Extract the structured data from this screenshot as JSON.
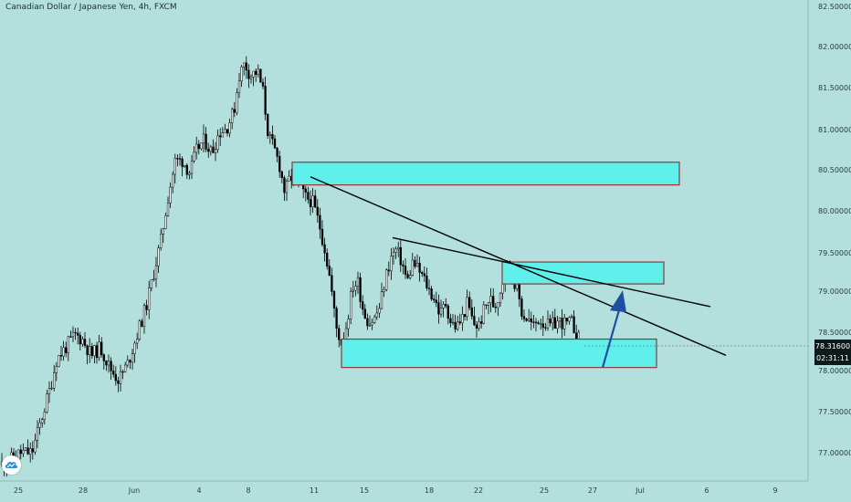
{
  "header": {
    "title": "Canadian Dollar / Japanese Yen, 4h, FXCM"
  },
  "colors": {
    "background": "#b3e0dd",
    "candle": "#000000",
    "zone_fill": "#5ff0ec",
    "zone_border": "#8b3a3a",
    "arrow": "#1f4fa0",
    "price_tag_bg": "#0d1b1b",
    "price_tag_text": "#ffffff",
    "axis_text": "#2a3d3d"
  },
  "chart_data": {
    "type": "candlestick",
    "symbol": "Canadian Dollar / Japanese Yen, 4h, FXCM",
    "x_axis": {
      "tick_labels": [
        "25",
        "28",
        "Jun",
        "4",
        "8",
        "11",
        "15",
        "18",
        "22",
        "25",
        "27",
        "Jul",
        "6",
        "9"
      ]
    },
    "y_axis": {
      "tick_labels": [
        "82.50000",
        "82.00000",
        "81.50000",
        "81.00000",
        "80.50000",
        "80.00000",
        "79.50000",
        "79.00000",
        "78.50000",
        "78.00000",
        "77.50000",
        "77.00000"
      ],
      "ylim": [
        76.6,
        82.6
      ]
    },
    "last_price": {
      "price": 78.316,
      "label": "78.31600",
      "countdown": "02:31:11"
    },
    "price_path": [
      [
        0,
        76.85
      ],
      [
        10,
        76.9
      ],
      [
        22,
        77.0
      ],
      [
        35,
        77.0
      ],
      [
        45,
        77.4
      ],
      [
        55,
        77.8
      ],
      [
        62,
        78.15
      ],
      [
        72,
        78.3
      ],
      [
        82,
        78.45
      ],
      [
        90,
        78.4
      ],
      [
        100,
        78.2
      ],
      [
        110,
        78.3
      ],
      [
        120,
        78.05
      ],
      [
        130,
        77.9
      ],
      [
        140,
        78.1
      ],
      [
        150,
        78.45
      ],
      [
        160,
        78.8
      ],
      [
        168,
        79.2
      ],
      [
        176,
        79.6
      ],
      [
        184,
        80.15
      ],
      [
        192,
        80.6
      ],
      [
        200,
        80.6
      ],
      [
        208,
        80.45
      ],
      [
        216,
        80.75
      ],
      [
        224,
        80.85
      ],
      [
        232,
        80.7
      ],
      [
        240,
        80.95
      ],
      [
        248,
        81.0
      ],
      [
        256,
        81.2
      ],
      [
        262,
        81.65
      ],
      [
        268,
        81.8
      ],
      [
        274,
        81.65
      ],
      [
        282,
        81.7
      ],
      [
        288,
        81.45
      ],
      [
        294,
        80.9
      ],
      [
        300,
        80.75
      ],
      [
        306,
        80.55
      ],
      [
        312,
        80.2
      ],
      [
        318,
        80.4
      ],
      [
        326,
        80.35
      ],
      [
        334,
        80.15
      ],
      [
        342,
        80.1
      ],
      [
        350,
        79.8
      ],
      [
        356,
        79.5
      ],
      [
        362,
        79.1
      ],
      [
        368,
        78.55
      ],
      [
        374,
        78.35
      ],
      [
        380,
        78.6
      ],
      [
        386,
        79.05
      ],
      [
        392,
        79.1
      ],
      [
        398,
        78.75
      ],
      [
        404,
        78.6
      ],
      [
        410,
        78.65
      ],
      [
        416,
        78.8
      ],
      [
        422,
        79.15
      ],
      [
        428,
        79.4
      ],
      [
        434,
        79.5
      ],
      [
        440,
        79.35
      ],
      [
        446,
        79.1
      ],
      [
        452,
        79.35
      ],
      [
        458,
        79.25
      ],
      [
        464,
        79.15
      ],
      [
        470,
        79.0
      ],
      [
        476,
        78.9
      ],
      [
        482,
        78.7
      ],
      [
        488,
        78.85
      ],
      [
        494,
        78.6
      ],
      [
        500,
        78.55
      ],
      [
        506,
        78.65
      ],
      [
        512,
        78.85
      ],
      [
        518,
        78.6
      ],
      [
        524,
        78.55
      ],
      [
        530,
        78.75
      ],
      [
        536,
        78.9
      ],
      [
        542,
        78.8
      ],
      [
        548,
        79.0
      ],
      [
        554,
        79.35
      ],
      [
        560,
        79.2
      ],
      [
        566,
        79.05
      ],
      [
        572,
        78.7
      ],
      [
        578,
        78.65
      ],
      [
        584,
        78.55
      ],
      [
        590,
        78.65
      ],
      [
        596,
        78.6
      ],
      [
        602,
        78.55
      ],
      [
        608,
        78.6
      ],
      [
        614,
        78.62
      ],
      [
        620,
        78.58
      ],
      [
        626,
        78.6
      ],
      [
        632,
        78.45
      ],
      [
        637,
        78.32
      ]
    ],
    "annotations": {
      "zones": [
        {
          "label": "upper resistance zone",
          "price_top": 80.58,
          "price_bottom": 80.3
        },
        {
          "label": "middle resistance zone",
          "price_top": 79.35,
          "price_bottom": 79.08
        },
        {
          "label": "support zone",
          "price_top": 78.4,
          "price_bottom": 78.05
        }
      ],
      "trendlines": [
        {
          "label": "trendline-1",
          "from": [
            340,
            80.4
          ],
          "to": [
            795,
            78.2
          ]
        },
        {
          "label": "trendline-2",
          "from": [
            430,
            79.65
          ],
          "to": [
            778,
            78.8
          ]
        }
      ],
      "arrow": {
        "label": "bullish arrow",
        "from": [
          660,
          78.05
        ],
        "to": [
          682,
          79.0
        ]
      }
    }
  }
}
